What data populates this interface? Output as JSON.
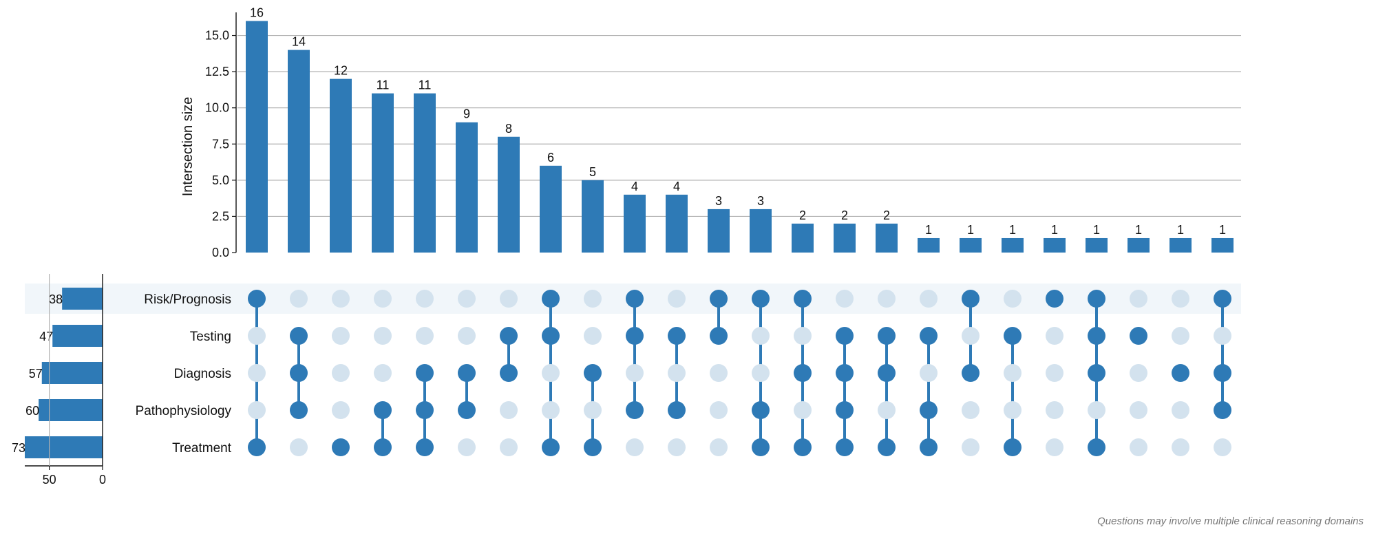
{
  "caption": "Questions may involve multiple clinical reasoning domains",
  "chart_data": {
    "type": "upset",
    "ylabel": "Intersection size",
    "ylim": [
      0,
      16.5
    ],
    "yticks": [
      "0.0",
      "2.5",
      "5.0",
      "7.5",
      "10.0",
      "12.5",
      "15.0"
    ],
    "sets": [
      {
        "name": "Risk/Prognosis",
        "size": 38
      },
      {
        "name": "Testing",
        "size": 47
      },
      {
        "name": "Diagnosis",
        "size": 57
      },
      {
        "name": "Pathophysiology",
        "size": 60
      },
      {
        "name": "Treatment",
        "size": 73
      }
    ],
    "set_size_ticks": [
      "50",
      "0"
    ],
    "intersections": [
      {
        "members": [
          "Risk/Prognosis",
          "Treatment"
        ],
        "size": 16
      },
      {
        "members": [
          "Testing",
          "Diagnosis",
          "Pathophysiology"
        ],
        "size": 14
      },
      {
        "members": [
          "Treatment"
        ],
        "size": 12
      },
      {
        "members": [
          "Pathophysiology",
          "Treatment"
        ],
        "size": 11
      },
      {
        "members": [
          "Diagnosis",
          "Pathophysiology",
          "Treatment"
        ],
        "size": 11
      },
      {
        "members": [
          "Diagnosis",
          "Pathophysiology"
        ],
        "size": 9
      },
      {
        "members": [
          "Testing",
          "Diagnosis"
        ],
        "size": 8
      },
      {
        "members": [
          "Risk/Prognosis",
          "Testing",
          "Treatment"
        ],
        "size": 6
      },
      {
        "members": [
          "Diagnosis",
          "Treatment"
        ],
        "size": 5
      },
      {
        "members": [
          "Risk/Prognosis",
          "Testing",
          "Pathophysiology"
        ],
        "size": 4
      },
      {
        "members": [
          "Testing",
          "Pathophysiology"
        ],
        "size": 4
      },
      {
        "members": [
          "Risk/Prognosis",
          "Testing"
        ],
        "size": 3
      },
      {
        "members": [
          "Risk/Prognosis",
          "Pathophysiology",
          "Treatment"
        ],
        "size": 3
      },
      {
        "members": [
          "Risk/Prognosis",
          "Diagnosis",
          "Treatment"
        ],
        "size": 2
      },
      {
        "members": [
          "Testing",
          "Diagnosis",
          "Pathophysiology",
          "Treatment"
        ],
        "size": 2
      },
      {
        "members": [
          "Testing",
          "Diagnosis",
          "Treatment"
        ],
        "size": 2
      },
      {
        "members": [
          "Testing",
          "Pathophysiology",
          "Treatment"
        ],
        "size": 1
      },
      {
        "members": [
          "Risk/Prognosis",
          "Diagnosis"
        ],
        "size": 1
      },
      {
        "members": [
          "Testing",
          "Treatment"
        ],
        "size": 1
      },
      {
        "members": [
          "Risk/Prognosis"
        ],
        "size": 1
      },
      {
        "members": [
          "Risk/Prognosis",
          "Testing",
          "Diagnosis",
          "Treatment"
        ],
        "size": 1
      },
      {
        "members": [
          "Testing"
        ],
        "size": 1
      },
      {
        "members": [
          "Diagnosis"
        ],
        "size": 1
      },
      {
        "members": [
          "Risk/Prognosis",
          "Diagnosis",
          "Pathophysiology"
        ],
        "size": 1
      }
    ],
    "colors": {
      "bar": "#2e7ab6",
      "dot_active": "#2e7ab6",
      "dot_inactive": "#d3e2ee",
      "row_shade": "#f1f6fa",
      "grid": "#b0b0b0"
    }
  }
}
